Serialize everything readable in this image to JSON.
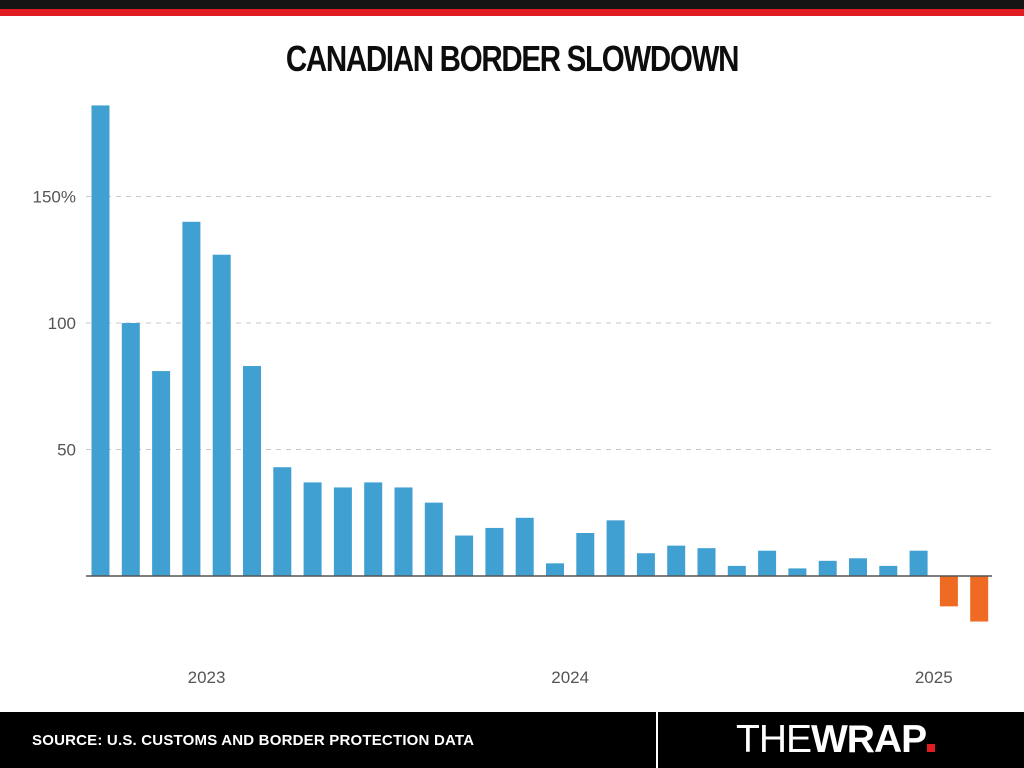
{
  "header": {
    "title": "CANADIAN BORDER SLOWDOWN"
  },
  "footer": {
    "source": "SOURCE: U.S. CUSTOMS AND BORDER PROTECTION DATA",
    "logo_the": "THE",
    "logo_wrap": "WRAP"
  },
  "colors": {
    "positive": "#41a0d2",
    "negative": "#ef6a22",
    "grid": "#c8c8c8",
    "axis": "#555555",
    "tick_text": "#555555",
    "accent_red": "#e11b22"
  },
  "chart_data": {
    "type": "bar",
    "title": "CANADIAN BORDER SLOWDOWN",
    "xlabel": "",
    "ylabel": "",
    "ylim": [
      -25,
      190
    ],
    "yticks": [
      {
        "value": 50,
        "label": "50"
      },
      {
        "value": 100,
        "label": "100"
      },
      {
        "value": 150,
        "label": "150%"
      }
    ],
    "xticks": [
      {
        "index": 3.5,
        "label": "2023"
      },
      {
        "index": 15.5,
        "label": "2024"
      },
      {
        "index": 27.5,
        "label": "2025"
      }
    ],
    "grid": true,
    "values": [
      186,
      100,
      81,
      140,
      127,
      83,
      43,
      37,
      35,
      37,
      35,
      29,
      16,
      19,
      23,
      5,
      17,
      22,
      9,
      12,
      11,
      4,
      10,
      3,
      6,
      7,
      4,
      10,
      -12,
      -18
    ]
  }
}
